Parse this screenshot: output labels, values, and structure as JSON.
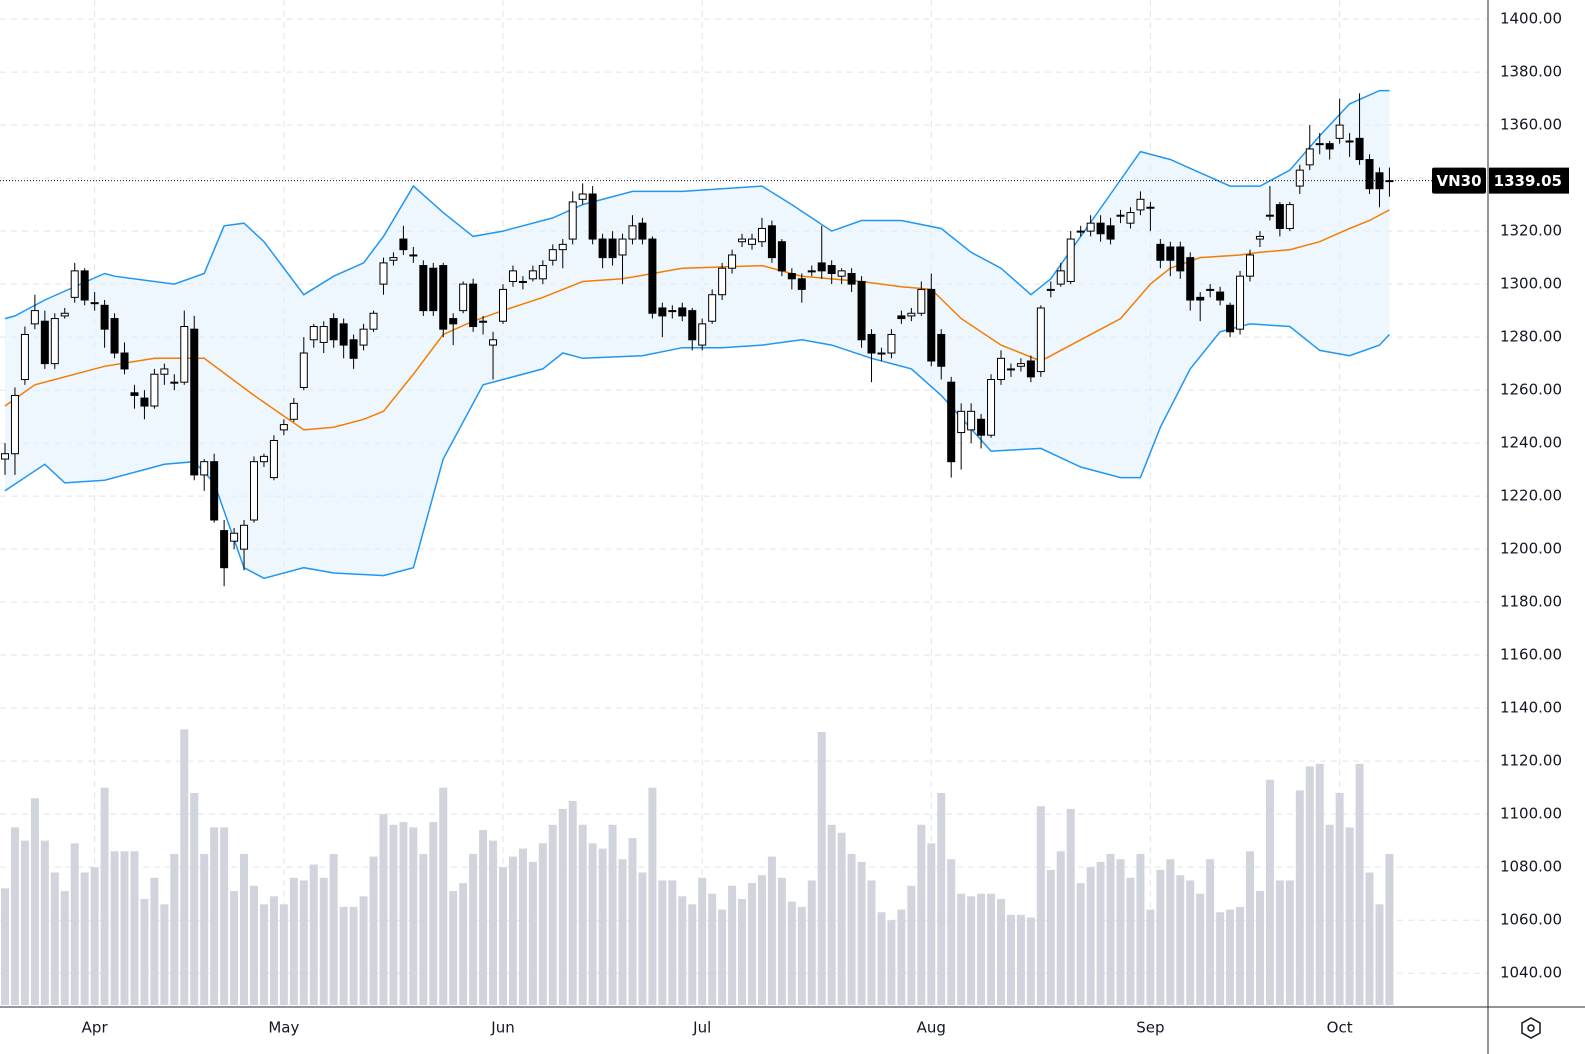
{
  "chart_data": {
    "type": "candlestick",
    "symbol": "VN30",
    "grid": true,
    "up_color": "#ffffff",
    "down_color": "#000000",
    "volume_color": "#d1d4dc",
    "band_color": "#2196f3",
    "band_fill": "#e3f2fd",
    "mid_color": "#f57c00",
    "ylim": [
      1028,
      1407.2
    ],
    "yticks": [
      {
        "value": 1040,
        "label": "1040.00"
      },
      {
        "value": 1060,
        "label": "1060.00"
      },
      {
        "value": 1080,
        "label": "1080.00"
      },
      {
        "value": 1100,
        "label": "1100.00"
      },
      {
        "value": 1120,
        "label": "1120.00"
      },
      {
        "value": 1140,
        "label": "1140.00"
      },
      {
        "value": 1160,
        "label": "1160.00"
      },
      {
        "value": 1180,
        "label": "1180.00"
      },
      {
        "value": 1200,
        "label": "1200.00"
      },
      {
        "value": 1220,
        "label": "1220.00"
      },
      {
        "value": 1240,
        "label": "1240.00"
      },
      {
        "value": 1260,
        "label": "1260.00"
      },
      {
        "value": 1280,
        "label": "1280.00"
      },
      {
        "value": 1300,
        "label": "1300.00"
      },
      {
        "value": 1320,
        "label": "1320.00"
      },
      {
        "value": 1340,
        "label": "1340.00"
      },
      {
        "value": 1360,
        "label": "1360.00"
      },
      {
        "value": 1380,
        "label": "1380.00"
      },
      {
        "value": 1400,
        "label": "1400.00"
      }
    ],
    "categories": [
      null,
      null,
      null,
      null,
      null,
      null,
      null,
      null,
      null,
      "Apr",
      null,
      null,
      null,
      null,
      null,
      null,
      null,
      null,
      null,
      null,
      null,
      null,
      null,
      null,
      null,
      null,
      null,
      null,
      "May",
      null,
      null,
      null,
      null,
      null,
      null,
      null,
      null,
      null,
      null,
      null,
      null,
      null,
      null,
      null,
      null,
      null,
      null,
      null,
      null,
      null,
      "Jun",
      null,
      null,
      null,
      null,
      null,
      null,
      null,
      null,
      null,
      null,
      null,
      null,
      null,
      null,
      null,
      null,
      null,
      null,
      null,
      "Jul",
      null,
      null,
      null,
      null,
      null,
      null,
      null,
      null,
      null,
      null,
      null,
      null,
      null,
      null,
      null,
      null,
      null,
      null,
      null,
      null,
      null,
      null,
      "Aug",
      null,
      null,
      null,
      null,
      null,
      null,
      null,
      null,
      null,
      null,
      null,
      null,
      null,
      null,
      null,
      null,
      null,
      null,
      null,
      null,
      null,
      "Sep",
      null,
      null,
      null,
      null,
      null,
      null,
      null,
      null,
      null,
      null,
      null,
      null,
      null,
      null,
      null,
      null,
      null,
      null,
      "Oct",
      null,
      null,
      null,
      null,
      null
    ],
    "open": [
      1234,
      1236,
      1264,
      1285,
      1286,
      1270,
      1288,
      1295,
      1305,
      1293,
      1292,
      1287,
      1274,
      1259,
      1257,
      1254,
      1266,
      1263,
      1263,
      1283,
      1228,
      1233,
      1207,
      1203,
      1200,
      1211,
      1233,
      1227,
      1245,
      1249,
      1261,
      1279,
      1278,
      1287,
      1285,
      1279,
      1277,
      1283,
      1300,
      1309,
      1317,
      1311,
      1307,
      1306,
      1307,
      1287,
      1290,
      1300,
      1286,
      1277,
      1286,
      1301,
      1301,
      1302,
      1302,
      1309,
      1313,
      1317,
      1332,
      1334,
      1317,
      1317,
      1311,
      1317,
      1323,
      1317,
      1291,
      1290,
      1291,
      1290,
      1277,
      1286,
      1296,
      1306,
      1316,
      1315,
      1316,
      1322,
      1316,
      1304,
      1302,
      1305,
      1308,
      1307,
      1303,
      1304,
      1301,
      1281,
      1274,
      1274,
      1288,
      1288,
      1289,
      1298,
      1281,
      1263,
      1244,
      1245,
      1249,
      1243,
      1264,
      1268,
      1269,
      1271,
      1267,
      1298,
      1300,
      1301,
      1320,
      1320,
      1323,
      1322,
      1326,
      1323,
      1328,
      1329,
      1315,
      1314,
      1314,
      1310,
      1295,
      1298,
      1297,
      1292,
      1283,
      1303,
      1317,
      1326,
      1330,
      1321,
      1337,
      1345,
      1353,
      1353,
      1355,
      1354,
      1355,
      1347,
      1342,
      1339
    ],
    "high": [
      1240,
      1261,
      1284,
      1296,
      1290,
      1289,
      1291,
      1308,
      1306,
      1297,
      1294,
      1289,
      1278,
      1262,
      1260,
      1268,
      1270,
      1266,
      1290,
      1288,
      1234,
      1236,
      1211,
      1208,
      1211,
      1235,
      1236,
      1243,
      1249,
      1257,
      1280,
      1285,
      1286,
      1289,
      1287,
      1281,
      1285,
      1290,
      1310,
      1312,
      1322,
      1314,
      1309,
      1308,
      1308,
      1289,
      1301,
      1302,
      1288,
      1282,
      1300,
      1307,
      1303,
      1307,
      1309,
      1315,
      1317,
      1335,
      1338,
      1337,
      1319,
      1320,
      1319,
      1326,
      1325,
      1318,
      1293,
      1292,
      1293,
      1291,
      1287,
      1298,
      1308,
      1313,
      1319,
      1319,
      1325,
      1324,
      1317,
      1306,
      1304,
      1307,
      1322,
      1309,
      1306,
      1306,
      1303,
      1283,
      1276,
      1283,
      1290,
      1291,
      1301,
      1304,
      1283,
      1265,
      1255,
      1255,
      1251,
      1266,
      1275,
      1270,
      1272,
      1273,
      1292,
      1301,
      1308,
      1320,
      1322,
      1326,
      1326,
      1325,
      1328,
      1329,
      1335,
      1331,
      1317,
      1316,
      1316,
      1312,
      1297,
      1300,
      1299,
      1293,
      1305,
      1313,
      1320,
      1337,
      1331,
      1331,
      1345,
      1360,
      1357,
      1354,
      1370,
      1357,
      1372,
      1349,
      1344,
      1344
    ],
    "low": [
      1228,
      1228,
      1262,
      1283,
      1268,
      1268,
      1287,
      1293,
      1292,
      1290,
      1276,
      1272,
      1266,
      1253,
      1249,
      1253,
      1262,
      1260,
      1262,
      1226,
      1222,
      1210,
      1186,
      1200,
      1192,
      1210,
      1231,
      1226,
      1243,
      1248,
      1260,
      1276,
      1274,
      1276,
      1272,
      1268,
      1275,
      1282,
      1296,
      1307,
      1311,
      1308,
      1288,
      1288,
      1280,
      1277,
      1289,
      1282,
      1281,
      1264,
      1285,
      1299,
      1298,
      1301,
      1300,
      1307,
      1306,
      1315,
      1330,
      1315,
      1306,
      1307,
      1300,
      1315,
      1315,
      1287,
      1280,
      1287,
      1286,
      1275,
      1275,
      1285,
      1294,
      1304,
      1314,
      1313,
      1314,
      1308,
      1303,
      1298,
      1293,
      1303,
      1302,
      1300,
      1300,
      1297,
      1276,
      1263,
      1271,
      1272,
      1285,
      1286,
      1288,
      1269,
      1264,
      1227,
      1230,
      1240,
      1238,
      1242,
      1262,
      1265,
      1267,
      1263,
      1265,
      1295,
      1299,
      1300,
      1318,
      1318,
      1316,
      1315,
      1323,
      1321,
      1326,
      1320,
      1306,
      1303,
      1302,
      1290,
      1286,
      1295,
      1292,
      1280,
      1281,
      1301,
      1314,
      1324,
      1318,
      1320,
      1334,
      1343,
      1349,
      1347,
      1353,
      1348,
      1345,
      1334,
      1329,
      1333
    ],
    "close": [
      1236,
      1258,
      1281,
      1290,
      1270,
      1287,
      1289,
      1305,
      1294,
      1293,
      1283,
      1274,
      1268,
      1258,
      1254,
      1266,
      1268,
      1263,
      1284,
      1228,
      1233,
      1211,
      1193,
      1206,
      1209,
      1233,
      1235,
      1241,
      1247,
      1255,
      1274,
      1284,
      1284,
      1279,
      1277,
      1272,
      1283,
      1289,
      1308,
      1310,
      1313,
      1311,
      1290,
      1290,
      1283,
      1285,
      1300,
      1284,
      1286,
      1279,
      1298,
      1305,
      1301,
      1305,
      1307,
      1313,
      1315,
      1331,
      1334,
      1317,
      1310,
      1310,
      1317,
      1322,
      1317,
      1289,
      1288,
      1290,
      1288,
      1279,
      1285,
      1296,
      1306,
      1311,
      1317,
      1317,
      1321,
      1310,
      1305,
      1302,
      1298,
      1305,
      1305,
      1304,
      1305,
      1300,
      1279,
      1274,
      1274,
      1281,
      1287,
      1289,
      1298,
      1271,
      1269,
      1233,
      1252,
      1252,
      1243,
      1264,
      1272,
      1268,
      1270,
      1265,
      1291,
      1298,
      1305,
      1317,
      1320,
      1323,
      1319,
      1317,
      1326,
      1327,
      1332,
      1329,
      1309,
      1309,
      1305,
      1294,
      1294,
      1298,
      1294,
      1282,
      1303,
      1311,
      1318,
      1326,
      1321,
      1330,
      1343,
      1351,
      1353,
      1351,
      1360,
      1354,
      1347,
      1336,
      1336,
      1339.05
    ],
    "volume": [
      1072,
      1095,
      1090,
      1106,
      1090,
      1078,
      1071,
      1089,
      1078,
      1080,
      1110,
      1086,
      1086,
      1086,
      1068,
      1076,
      1066,
      1085,
      1132,
      1108,
      1085,
      1095,
      1095,
      1071,
      1085,
      1073,
      1066,
      1069,
      1066,
      1076,
      1075,
      1081,
      1076,
      1085,
      1065,
      1065,
      1069,
      1084,
      1100,
      1096,
      1097,
      1095,
      1085,
      1097,
      1110,
      1071,
      1074,
      1085,
      1094,
      1090,
      1080,
      1084,
      1087,
      1082,
      1089,
      1096,
      1102,
      1105,
      1096,
      1089,
      1087,
      1096,
      1083,
      1091,
      1078,
      1110,
      1075,
      1075,
      1069,
      1066,
      1076,
      1070,
      1064,
      1073,
      1068,
      1074,
      1077,
      1084,
      1076,
      1067,
      1065,
      1075,
      1131,
      1096,
      1093,
      1085,
      1082,
      1075,
      1063,
      1060,
      1064,
      1073,
      1096,
      1089,
      1108,
      1083,
      1070,
      1069,
      1070,
      1070,
      1068,
      1062,
      1062,
      1061,
      1103,
      1079,
      1086,
      1102,
      1074,
      1080,
      1082,
      1085,
      1083,
      1076,
      1085,
      1064,
      1079,
      1083,
      1077,
      1075,
      1070,
      1083,
      1063,
      1064,
      1065,
      1086,
      1071,
      1113,
      1075,
      1075,
      1109,
      1118,
      1119,
      1096,
      1108,
      1095,
      1119,
      1078,
      1066,
      1085
    ],
    "bollinger": {
      "upper": {
        "x": [
          0,
          1,
          4,
          10,
          11,
          17,
          20,
          22,
          24,
          26,
          30,
          33,
          36,
          38,
          41,
          44,
          47,
          50,
          55,
          58,
          63,
          68,
          76,
          79,
          83,
          86,
          90,
          94,
          97,
          100,
          103,
          105,
          108,
          111,
          114,
          117,
          120,
          123,
          126,
          129,
          132,
          135,
          138,
          139
        ],
        "values": [
          1287,
          1288,
          1294,
          1304,
          1303,
          1300,
          1304,
          1322,
          1323,
          1316,
          1296,
          1303,
          1308,
          1318,
          1337,
          1327,
          1318,
          1320,
          1325,
          1330,
          1335,
          1335,
          1337,
          1330,
          1320,
          1324,
          1324,
          1321,
          1312,
          1306,
          1296,
          1302,
          1318,
          1334,
          1350,
          1347,
          1342,
          1337,
          1337,
          1343,
          1356,
          1368,
          1373,
          1373
        ]
      },
      "middle": {
        "x": [
          0,
          3,
          10,
          15,
          20,
          25,
          30,
          33,
          36,
          38,
          41,
          44,
          47,
          50,
          54,
          58,
          62,
          68,
          76,
          80,
          86,
          90,
          93,
          96,
          100,
          104,
          108,
          112,
          115,
          117,
          120,
          124,
          126,
          129,
          132,
          135,
          137,
          139
        ],
        "values": [
          1254,
          1262,
          1269,
          1272,
          1272,
          1258,
          1245,
          1246,
          1249,
          1252,
          1266,
          1281,
          1286,
          1290,
          1295,
          1301,
          1302,
          1306,
          1307,
          1303,
          1301,
          1299,
          1298,
          1287,
          1277,
          1271,
          1279,
          1287,
          1300,
          1306,
          1310,
          1311,
          1312,
          1313,
          1316,
          1321,
          1324,
          1328
        ]
      },
      "lower": {
        "x": [
          0,
          4,
          6,
          10,
          14,
          16,
          19,
          21,
          24,
          26,
          30,
          33,
          38,
          41,
          44,
          48,
          50,
          54,
          56,
          58,
          64,
          68,
          72,
          76,
          80,
          83,
          87,
          91,
          94,
          99,
          104,
          108,
          112,
          114,
          116,
          119,
          122,
          125,
          129,
          132,
          135,
          138,
          139
        ],
        "values": [
          1222,
          1232,
          1225,
          1226,
          1230,
          1232,
          1233,
          1225,
          1193,
          1189,
          1193,
          1191,
          1190,
          1193,
          1234,
          1262,
          1264,
          1268,
          1274,
          1272,
          1273,
          1276,
          1276,
          1277,
          1279,
          1277,
          1272,
          1268,
          1258,
          1237,
          1238,
          1231,
          1227,
          1227,
          1246,
          1268,
          1282,
          1285,
          1284,
          1275,
          1273,
          1277,
          1281
        ]
      }
    }
  }
}
